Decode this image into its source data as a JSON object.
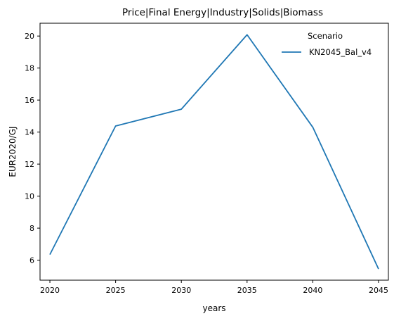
{
  "chart_data": {
    "type": "line",
    "title": "Price|Final Energy|Industry|Solids|Biomass",
    "xlabel": "years",
    "ylabel": "EUR2020/GJ",
    "x": [
      2020,
      2025,
      2030,
      2035,
      2040,
      2045
    ],
    "xticks": [
      "2020",
      "2025",
      "2030",
      "2035",
      "2040",
      "2045"
    ],
    "xlim": [
      2019.25,
      2045.75
    ],
    "ylim": [
      4.75,
      20.8
    ],
    "yticks": [
      "6",
      "8",
      "10",
      "12",
      "14",
      "16",
      "18",
      "20"
    ],
    "series": [
      {
        "name": "KN2045_Bal_v4",
        "values": [
          6.35,
          14.38,
          15.43,
          20.08,
          14.3,
          5.45
        ],
        "color": "#1f77b4"
      }
    ],
    "legend": {
      "title": "Scenario",
      "placement": "top-right"
    },
    "grid": false
  }
}
